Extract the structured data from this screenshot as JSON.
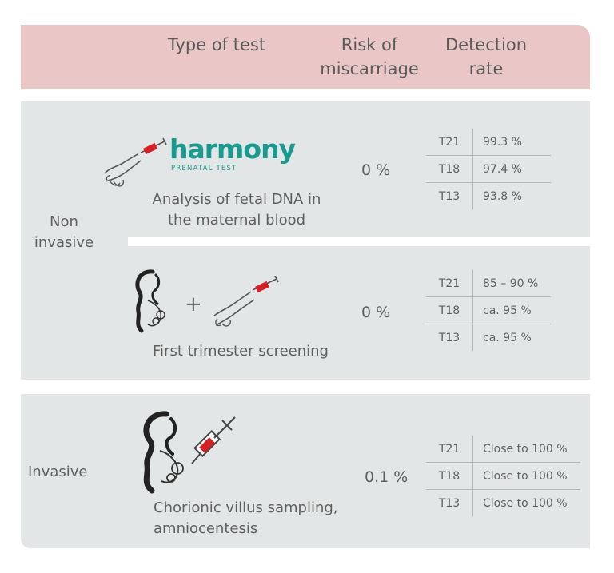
{
  "header": {
    "col_type": "Type of test",
    "col_risk_line1": "Risk of",
    "col_risk_line2": "miscarriage",
    "col_detect_line1": "Detection",
    "col_detect_line2": "rate"
  },
  "groups": {
    "noninvasive_line1": "Non",
    "noninvasive_line2": "invasive",
    "invasive": "Invasive"
  },
  "rows": [
    {
      "logo_word": "harmony",
      "logo_sub": "PRENATAL TEST",
      "desc_line1": "Analysis of fetal DNA in",
      "desc_line2": "the maternal blood",
      "risk": "0 %",
      "rates": [
        {
          "k": "T21",
          "v": "99.3 %"
        },
        {
          "k": "T18",
          "v": "97.4 %"
        },
        {
          "k": "T13",
          "v": "93.8 %"
        }
      ]
    },
    {
      "plus": "+",
      "desc_line1": "First trimester screening",
      "risk": "0 %",
      "rates": [
        {
          "k": "T21",
          "v": "85 – 90 %"
        },
        {
          "k": "T18",
          "v": "ca. 95 %"
        },
        {
          "k": "T13",
          "v": "ca. 95 %"
        }
      ]
    },
    {
      "desc_line1": "Chorionic villus sampling,",
      "desc_line2": "amniocentesis",
      "risk": "0.1 %",
      "rates": [
        {
          "k": "T21",
          "v": "Close to 100 %"
        },
        {
          "k": "T18",
          "v": "Close to 100 %"
        },
        {
          "k": "T13",
          "v": "Close to 100 %"
        }
      ]
    }
  ],
  "icons": [
    "arm-syringe-icon",
    "harmony-logo",
    "pregnant-woman-icon",
    "syringe-icon"
  ],
  "colors": {
    "header": "#eac6c6",
    "panel": "#e3e6e6",
    "harmony": "#1a9a8f",
    "syringe_red": "#d42027"
  }
}
